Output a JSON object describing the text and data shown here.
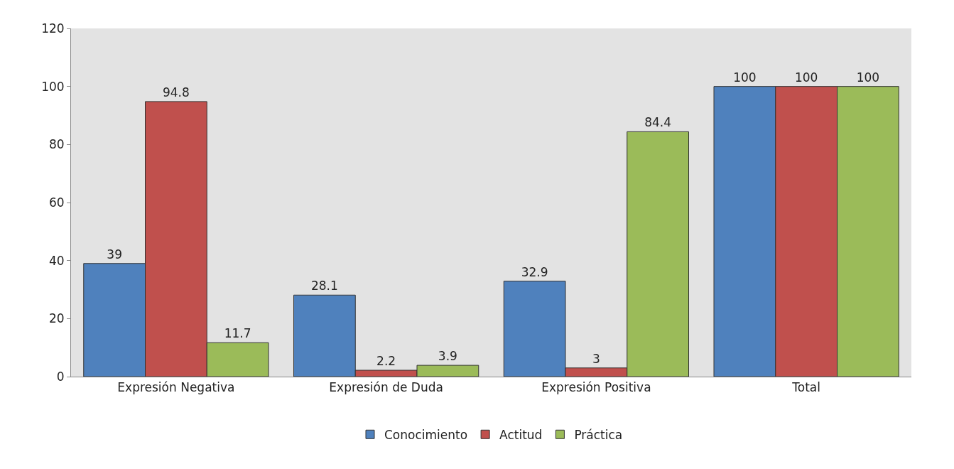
{
  "chart_data": {
    "type": "bar",
    "categories": [
      "Expresión Negativa",
      "Expresión de Duda",
      "Expresión Positiva",
      "Total"
    ],
    "series": [
      {
        "name": "Conocimiento",
        "color": "#4f81bd",
        "values": [
          39,
          28.1,
          32.9,
          100
        ]
      },
      {
        "name": "Actitud",
        "color": "#c0504d",
        "values": [
          94.8,
          2.2,
          3,
          100
        ]
      },
      {
        "name": "Práctica",
        "color": "#9bbb59",
        "values": [
          11.7,
          3.9,
          84.4,
          100
        ]
      }
    ],
    "ylim": [
      0,
      120
    ],
    "yticks": [
      0,
      20,
      40,
      60,
      80,
      100,
      120
    ],
    "grid": false,
    "legend": "bottom",
    "data_labels": true
  }
}
